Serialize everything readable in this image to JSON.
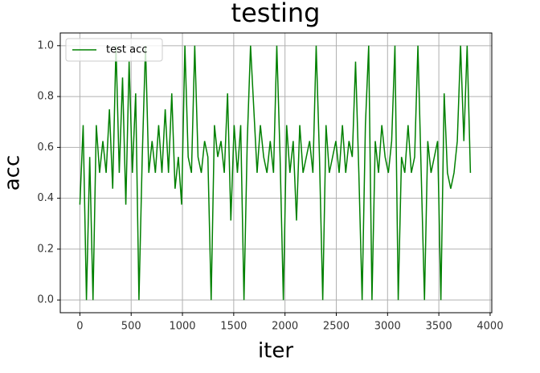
{
  "chart_data": {
    "type": "line",
    "title": "testing",
    "x_label": "iter",
    "y_label": "acc",
    "x": [
      0,
      32,
      64,
      96,
      128,
      160,
      192,
      224,
      256,
      288,
      320,
      352,
      384,
      416,
      448,
      480,
      512,
      544,
      576,
      608,
      640,
      672,
      704,
      736,
      768,
      800,
      832,
      864,
      896,
      928,
      960,
      992,
      1024,
      1056,
      1088,
      1120,
      1152,
      1184,
      1216,
      1248,
      1280,
      1312,
      1344,
      1376,
      1408,
      1440,
      1472,
      1504,
      1536,
      1568,
      1600,
      1632,
      1664,
      1696,
      1728,
      1760,
      1792,
      1824,
      1856,
      1888,
      1920,
      1952,
      1984,
      2016,
      2048,
      2080,
      2112,
      2144,
      2176,
      2208,
      2240,
      2272,
      2304,
      2336,
      2368,
      2400,
      2432,
      2464,
      2496,
      2528,
      2560,
      2592,
      2624,
      2656,
      2688,
      2720,
      2752,
      2784,
      2816,
      2848,
      2880,
      2912,
      2944,
      2976,
      3008,
      3040,
      3072,
      3104,
      3136,
      3168,
      3200,
      3232,
      3264,
      3296,
      3328,
      3360,
      3392,
      3424,
      3456,
      3488,
      3520,
      3552,
      3584,
      3616,
      3648,
      3680,
      3712,
      3744,
      3776,
      3808
    ],
    "series": [
      {
        "name": "test acc",
        "color": "#008000",
        "values": [
          0.375,
          0.6875,
          0,
          0.5625,
          0,
          0.6875,
          0.5,
          0.625,
          0.5,
          0.75,
          0.4375,
          1,
          0.5,
          0.875,
          0.375,
          0.9375,
          0.5,
          0.8125,
          0,
          0.5625,
          1,
          0.5,
          0.625,
          0.5,
          0.6875,
          0.5,
          0.75,
          0.5,
          0.8125,
          0.4375,
          0.5625,
          0.375,
          1,
          0.5625,
          0.5,
          1,
          0.5625,
          0.5,
          0.625,
          0.5625,
          0,
          0.6875,
          0.5625,
          0.625,
          0.5,
          0.8125,
          0.3125,
          0.6875,
          0.5,
          0.6875,
          0,
          0.625,
          1,
          0.75,
          0.5,
          0.6875,
          0.5625,
          0.5,
          0.625,
          0.5,
          1,
          0.5625,
          0,
          0.6875,
          0.5,
          0.625,
          0.3125,
          0.6875,
          0.5,
          0.5625,
          0.625,
          0.5,
          1,
          0.5625,
          0,
          0.6875,
          0.5,
          0.5625,
          0.625,
          0.5,
          0.6875,
          0.5,
          0.625,
          0.5625,
          0.9375,
          0.5,
          0,
          0.6875,
          1,
          0,
          0.625,
          0.5,
          0.6875,
          0.5625,
          0.5,
          0.625,
          1,
          0,
          0.5625,
          0.5,
          0.6875,
          0.5,
          0.5625,
          1,
          0.5,
          0,
          0.625,
          0.5,
          0.5625,
          0.625,
          0,
          0.8125,
          0.5,
          0.4375,
          0.5,
          0.625,
          1,
          0.625,
          1,
          0.5
        ]
      }
    ],
    "xlim": [
      -191.25,
      4016.25
    ],
    "ylim": [
      -0.05,
      1.05
    ],
    "xticks": [
      0,
      500,
      1000,
      1500,
      2000,
      2500,
      3000,
      3500,
      4000
    ],
    "yticks": [
      {
        "value": 0,
        "label": "0.0"
      },
      0.2,
      0.4,
      0.6,
      0.8,
      {
        "value": 1,
        "label": "1.0"
      }
    ],
    "grid": true,
    "legend": "upper left"
  }
}
